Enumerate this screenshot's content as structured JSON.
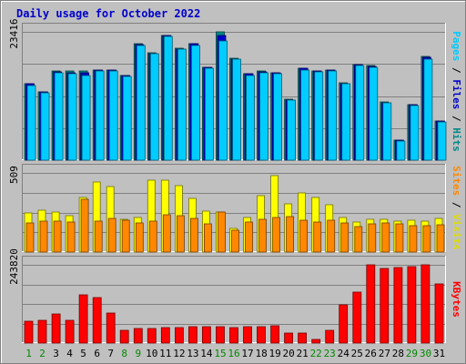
{
  "chart_data": {
    "type": "bar",
    "title": "Daily usage for October 2022",
    "categories": [
      "1",
      "2",
      "3",
      "4",
      "5",
      "6",
      "7",
      "8",
      "9",
      "10",
      "11",
      "12",
      "13",
      "14",
      "15",
      "16",
      "17",
      "18",
      "19",
      "20",
      "21",
      "22",
      "23",
      "24",
      "25",
      "26",
      "27",
      "28",
      "29",
      "30",
      "31"
    ],
    "weekend_days": [
      "1",
      "2",
      "8",
      "9",
      "15",
      "16",
      "22",
      "23",
      "29",
      "30"
    ],
    "panels": [
      {
        "id": "top",
        "ymax_label": "23416",
        "ylim": [
          0,
          23416
        ],
        "right_labels": [
          {
            "text": "Pages",
            "color": "#00ccff"
          },
          {
            "text": " / ",
            "color": "#000000"
          },
          {
            "text": "Files",
            "color": "#0000cc"
          },
          {
            "text": " / ",
            "color": "#000000"
          },
          {
            "text": "Hits",
            "color": "#008888"
          }
        ],
        "series": [
          {
            "name": "Hits",
            "color": "#008888",
            "values": [
              14000,
              12500,
              16200,
              16200,
              16200,
              16500,
              16500,
              15500,
              21200,
              19600,
              22800,
              20400,
              21300,
              17000,
              23416,
              18600,
              15800,
              16200,
              16000,
              11100,
              16800,
              16300,
              16500,
              14100,
              17500,
              17200,
              10600,
              3700,
              10200,
              18900,
              7200
            ]
          },
          {
            "name": "Files",
            "color": "#0000cc",
            "values": [
              13900,
              12400,
              16100,
              16000,
              16000,
              16400,
              16400,
              15400,
              21100,
              19500,
              22700,
              20300,
              21200,
              16900,
              22700,
              18500,
              15700,
              16100,
              15900,
              11000,
              16700,
              16200,
              16400,
              14000,
              17400,
              17100,
              10500,
              3600,
              10100,
              18700,
              7100
            ]
          },
          {
            "name": "Pages",
            "color": "#00ccff",
            "values": [
              13700,
              12300,
              16000,
              15800,
              15500,
              16300,
              16300,
              15200,
              21000,
              19400,
              22600,
              20200,
              21000,
              16800,
              21800,
              18400,
              15500,
              15900,
              15700,
              11000,
              16500,
              16100,
              16300,
              13900,
              17200,
              17000,
              10500,
              3500,
              10000,
              18500,
              7000
            ]
          }
        ]
      },
      {
        "id": "middle",
        "ymax_label": "509",
        "ylim": [
          0,
          509
        ],
        "right_labels": [
          {
            "text": "Sites",
            "color": "#ff8800"
          },
          {
            "text": " / ",
            "color": "#000000"
          },
          {
            "text": "Visits",
            "color": "#dddd00"
          }
        ],
        "series": [
          {
            "name": "Visits",
            "color": "#ffff00",
            "values": [
              250,
              270,
              255,
              235,
              350,
              450,
              420,
              210,
              220,
              460,
              460,
              425,
              345,
              265,
              255,
              150,
              225,
              360,
              490,
              310,
              380,
              350,
              305,
              220,
              195,
              210,
              210,
              200,
              205,
              200,
              215
            ]
          },
          {
            "name": "Sites",
            "color": "#ff8800",
            "values": [
              185,
              200,
              200,
              195,
              340,
              200,
              215,
              205,
              185,
              200,
              240,
              235,
              215,
              180,
              255,
              140,
              195,
              210,
              225,
              230,
              205,
              195,
              205,
              185,
              165,
              180,
              185,
              180,
              170,
              170,
              175
            ]
          }
        ]
      },
      {
        "id": "bottom",
        "ymax_label": "243820",
        "ylim": [
          0,
          243820
        ],
        "right_labels": [
          {
            "text": "KBytes",
            "color": "#ff0000"
          }
        ],
        "series": [
          {
            "name": "KBytes",
            "color": "#ff0000",
            "values": [
              68000,
              72000,
              92000,
              70000,
              150000,
              142000,
              94000,
              40000,
              44000,
              44000,
              48000,
              48000,
              50000,
              50000,
              50000,
              49000,
              50000,
              52000,
              54000,
              30000,
              31000,
              12000,
              40000,
              120000,
              160000,
              243820,
              232000,
              234000,
              238000,
              243820,
              184000
            ]
          }
        ]
      }
    ],
    "grid": true,
    "legend": "right-vertical"
  }
}
